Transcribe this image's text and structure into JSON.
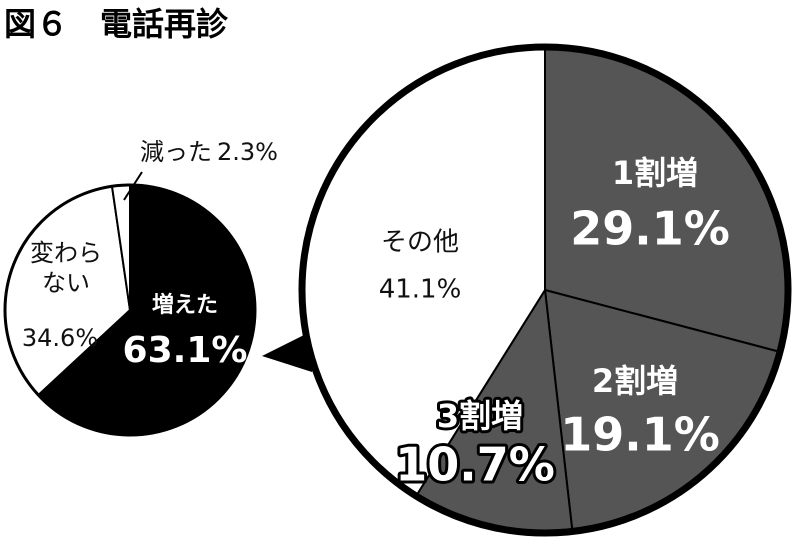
{
  "chart_data": [
    {
      "type": "pie",
      "title": "図６　電話再診",
      "categories": [
        "増えた",
        "変わらない",
        "減った"
      ],
      "values": [
        63.1,
        34.6,
        2.3
      ],
      "value_labels": [
        "63.1%",
        "34.6%",
        "2.3%"
      ],
      "colors": [
        "#000000",
        "#ffffff",
        "#ffffff"
      ]
    },
    {
      "type": "pie",
      "categories": [
        "1割増",
        "2割増",
        "3割増",
        "その他"
      ],
      "values": [
        29.1,
        19.1,
        10.7,
        41.1
      ],
      "value_labels": [
        "29.1%",
        "19.1%",
        "10.7%",
        "41.1%"
      ],
      "colors": [
        "#555555",
        "#555555",
        "#555555",
        "#ffffff"
      ]
    }
  ]
}
